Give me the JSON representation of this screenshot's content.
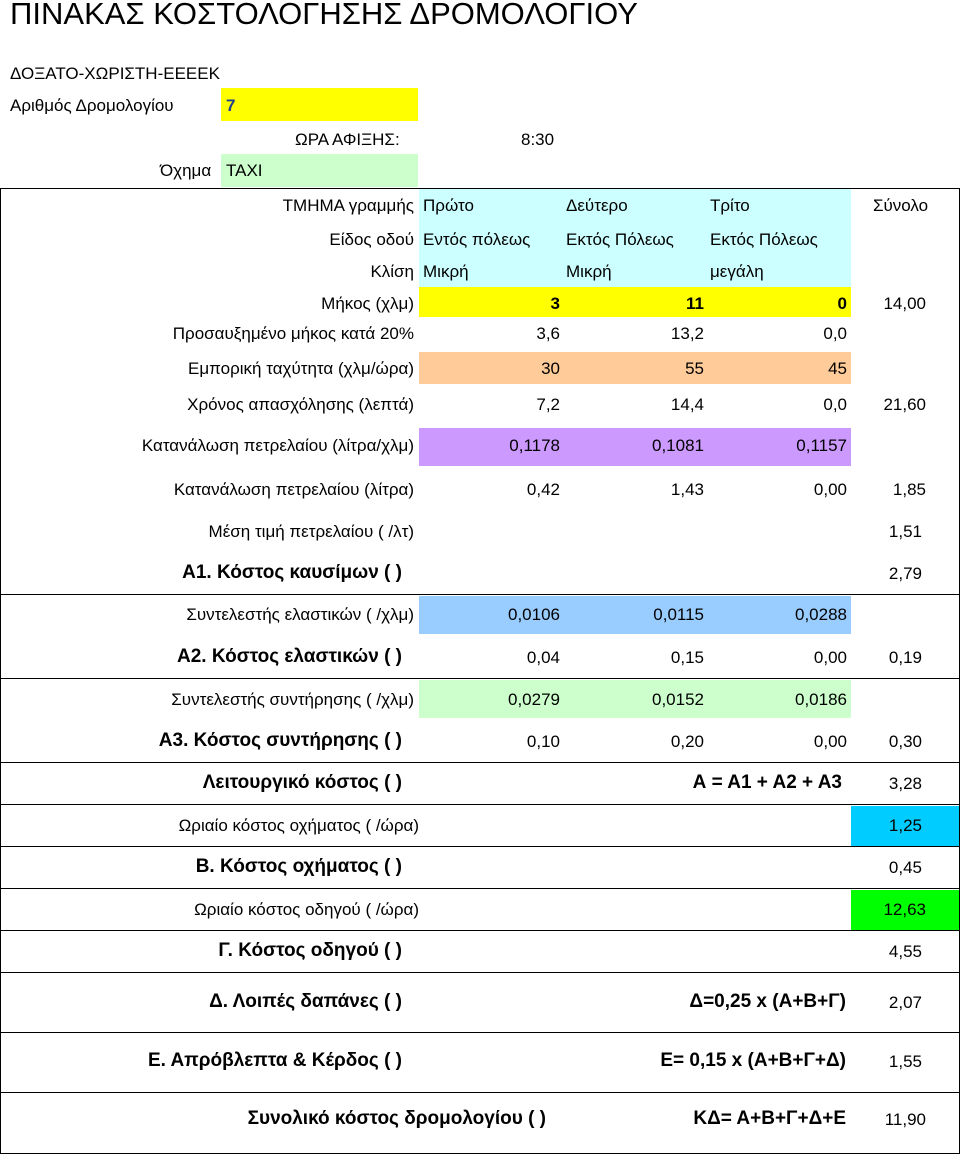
{
  "title": "ΠΙΝΑΚΑΣ ΚΟΣΤΟΛΟΓΗΣΗΣ ΔΡΟΜΟΛΟΓΙΟΥ",
  "route_name": "ΔΟΞΑΤΟ-ΧΩΡΙΣΤΗ-ΕΕΕΕΚ",
  "route_number_label": "Αριθμός Δρομολογίου",
  "route_number": "7",
  "arrival_label": "ΩΡΑ ΑΦΙΞΗΣ:",
  "arrival_time": "8:30",
  "vehicle_label": "Όχημα",
  "vehicle": "TAXI",
  "header": {
    "label": "ΤΜΗΜΑ γραμμής",
    "c1": "Πρώτο",
    "c2": "Δεύτερο",
    "c3": "Τρίτο",
    "total": "Σύνολο"
  },
  "road_type": {
    "label": "Είδος οδού",
    "c1": "Εντός πόλεως",
    "c2": "Εκτός Πόλεως",
    "c3": "Εκτός Πόλεως"
  },
  "slope": {
    "label": "Κλίση",
    "c1": "Μικρή",
    "c2": "Μικρή",
    "c3": "μεγάλη"
  },
  "length": {
    "label": "Μήκος (χλμ)",
    "c1": "3",
    "c2": "11",
    "c3": "0",
    "total": "14,00"
  },
  "increased_length": {
    "label": "Προσαυξημένο μήκος κατά 20%",
    "c1": "3,6",
    "c2": "13,2",
    "c3": "0,0"
  },
  "speed": {
    "label": "Εμπορική ταχύτητα (χλμ/ώρα)",
    "c1": "30",
    "c2": "55",
    "c3": "45"
  },
  "time": {
    "label": "Χρόνος απασχόλησης (λεπτά)",
    "c1": "7,2",
    "c2": "14,4",
    "c3": "0,0",
    "total": "21,60"
  },
  "fuel_rate": {
    "label": "Κατανάλωση πετρελαίου (λίτρα/χλμ)",
    "c1": "0,1178",
    "c2": "0,1081",
    "c3": "0,1157"
  },
  "fuel_liters": {
    "label": "Κατανάλωση πετρελαίου (λίτρα)",
    "c1": "0,42",
    "c2": "1,43",
    "c3": "0,00",
    "total": "1,85"
  },
  "fuel_price": {
    "label": "Μέση τιμή πετρελαίου  ( /λτ)",
    "total": "1,51"
  },
  "a1": {
    "label": "Α1. Κόστος καυσίμων  ( )",
    "total": "2,79"
  },
  "tire_coef": {
    "label": "Συντελεστής ελαστικών  ( /χλμ)",
    "c1": "0,0106",
    "c2": "0,0115",
    "c3": "0,0288"
  },
  "a2": {
    "label": "Α2. Κόστος ελαστικών  ( )",
    "c1": "0,04",
    "c2": "0,15",
    "c3": "0,00",
    "total": "0,19"
  },
  "maint_coef": {
    "label": "Συντελεστής συντήρησης  ( /χλμ)",
    "c1": "0,0279",
    "c2": "0,0152",
    "c3": "0,0186"
  },
  "a3": {
    "label": "Α3. Κόστος συντήρησης  ( )",
    "c1": "0,10",
    "c2": "0,20",
    "c3": "0,00",
    "total": "0,30"
  },
  "operating": {
    "label": "Λειτουργικό κόστος  ( )",
    "formula": "Α = Α1 + Α2 + Α3",
    "total": "3,28"
  },
  "vehicle_hourly": {
    "label": "Ωριαίο κόστος οχήματος  ( /ώρα)",
    "total": "1,25"
  },
  "b": {
    "label": "Β. Κόστος οχήματος  ( )",
    "total": "0,45"
  },
  "driver_hourly": {
    "label": "Ωριαίο κόστος οδηγού  ( /ώρα)",
    "total": "12,63"
  },
  "g": {
    "label": "Γ. Κόστος οδηγού  ( )",
    "total": "4,55"
  },
  "d": {
    "label": "Δ. Λοιπές δαπάνες  ( )",
    "formula": "Δ=0,25 x (Α+Β+Γ)",
    "total": "2,07"
  },
  "e": {
    "label": "Ε. Απρόβλεπτα & Κέρδος ( )",
    "formula": "Ε= 0,15 x (Α+Β+Γ+Δ)",
    "total": "1,55"
  },
  "final": {
    "label": "Συνολικό κόστος δρομολογίου ( )",
    "formula": "ΚΔ= Α+Β+Γ+Δ+Ε",
    "total": "11,90"
  }
}
